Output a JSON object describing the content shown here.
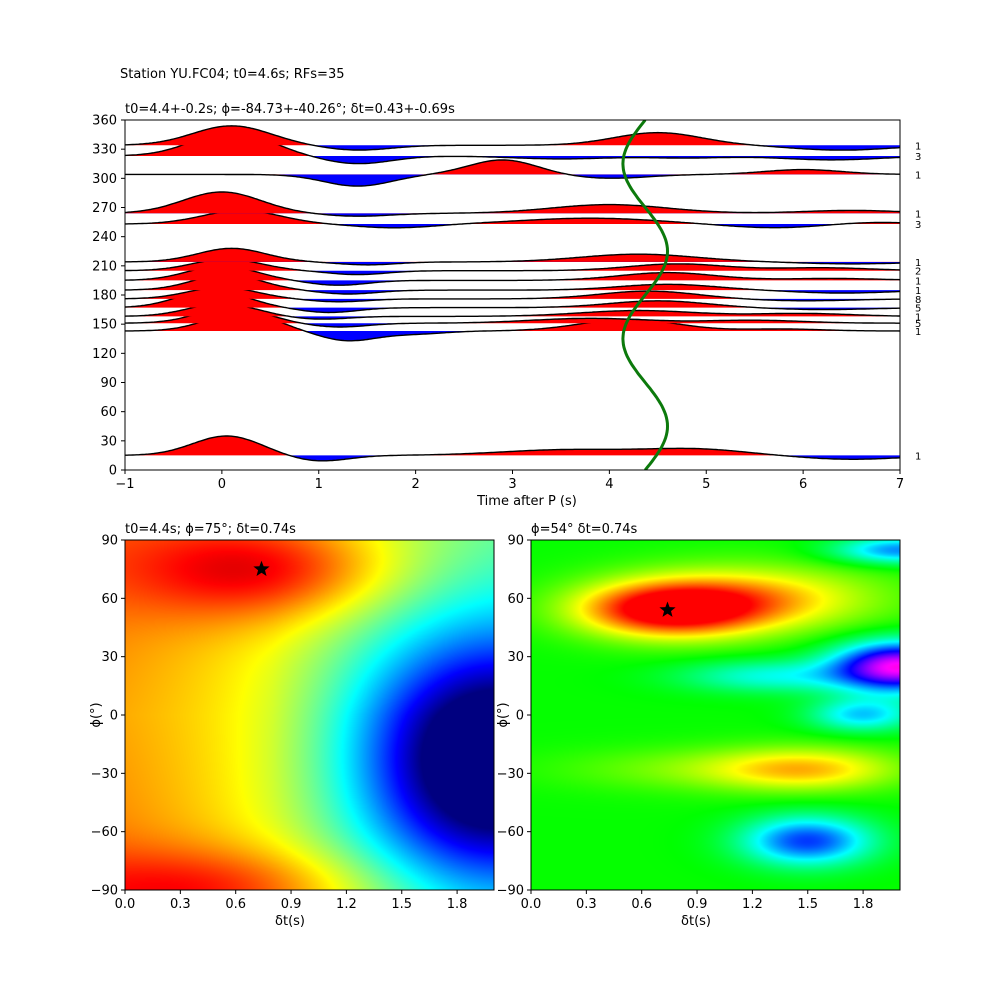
{
  "figure_title": "Station YU.FC04; t0=4.6s; RFs=35",
  "chart_data": [
    {
      "type": "line",
      "title": "t0=4.4+-0.2s; ϕ=-84.73+-40.26°; δt=0.43+-0.69s",
      "xlabel": "Time after P (s)",
      "ylabel": "",
      "xlim": [
        -1,
        7
      ],
      "ylim": [
        0,
        360
      ],
      "x_ticks": [
        "−1",
        "0",
        "1",
        "2",
        "3",
        "4",
        "5",
        "6",
        "7"
      ],
      "y_ticks": [
        "0",
        "30",
        "60",
        "90",
        "120",
        "150",
        "180",
        "210",
        "240",
        "270",
        "300",
        "330",
        "360"
      ],
      "baz_counts": [
        {
          "baz": 15,
          "count": "1"
        },
        {
          "baz": 143,
          "count": "1"
        },
        {
          "baz": 151,
          "count": "5"
        },
        {
          "baz": 158,
          "count": "1"
        },
        {
          "baz": 167,
          "count": "5"
        },
        {
          "baz": 176,
          "count": "8"
        },
        {
          "baz": 185,
          "count": "1"
        },
        {
          "baz": 195,
          "count": "1"
        },
        {
          "baz": 205,
          "count": "2"
        },
        {
          "baz": 214,
          "count": "1"
        },
        {
          "baz": 253,
          "count": "3"
        },
        {
          "baz": 264,
          "count": "1"
        },
        {
          "baz": 323,
          "count": "3"
        },
        {
          "baz": 334,
          "count": "1"
        },
        {
          "baz": 304,
          "count": "1"
        }
      ],
      "traces": [
        {
          "baz": 15,
          "peaks": [
            [
              0.05,
              2.0,
              0.35
            ],
            [
              1.0,
              -0.6,
              0.3
            ],
            [
              3.6,
              0.6,
              0.7
            ],
            [
              4.9,
              0.6,
              0.5
            ],
            [
              6.5,
              -0.4,
              0.5
            ]
          ]
        },
        {
          "baz": 143,
          "peaks": [
            [
              0.2,
              1.9,
              0.35
            ],
            [
              1.3,
              -1.0,
              0.3
            ],
            [
              2.0,
              -0.3,
              0.3
            ],
            [
              4.2,
              1.2,
              0.5
            ],
            [
              5.8,
              0.2,
              0.4
            ]
          ]
        },
        {
          "baz": 151,
          "peaks": [
            [
              0.1,
              1.6,
              0.35
            ],
            [
              1.2,
              -0.4,
              0.3
            ],
            [
              3.8,
              0.5,
              0.6
            ],
            [
              5.5,
              0.3,
              0.5
            ]
          ]
        },
        {
          "baz": 158,
          "peaks": [
            [
              0.0,
              1.3,
              0.35
            ],
            [
              1.0,
              -0.3,
              0.3
            ],
            [
              4.3,
              0.6,
              0.6
            ],
            [
              6.0,
              0.3,
              0.5
            ]
          ]
        },
        {
          "baz": 167,
          "peaks": [
            [
              -0.1,
              1.8,
              0.35
            ],
            [
              1.1,
              -0.5,
              0.3
            ],
            [
              4.5,
              0.7,
              0.5
            ],
            [
              6.2,
              -0.2,
              0.5
            ]
          ]
        },
        {
          "baz": 176,
          "peaks": [
            [
              0.0,
              1.2,
              0.35
            ],
            [
              1.2,
              -0.3,
              0.3
            ],
            [
              4.4,
              0.8,
              0.5
            ],
            [
              6.0,
              -0.2,
              0.5
            ]
          ]
        },
        {
          "baz": 185,
          "peaks": [
            [
              0.05,
              1.6,
              0.35
            ],
            [
              1.3,
              -0.4,
              0.3
            ],
            [
              4.6,
              0.6,
              0.5
            ],
            [
              6.4,
              -0.3,
              0.5
            ]
          ]
        },
        {
          "baz": 195,
          "peaks": [
            [
              0.0,
              1.5,
              0.35
            ],
            [
              1.2,
              -0.5,
              0.3
            ],
            [
              4.6,
              0.8,
              0.5
            ],
            [
              6.3,
              0.2,
              0.5
            ]
          ]
        },
        {
          "baz": 205,
          "peaks": [
            [
              0.05,
              1.2,
              0.35
            ],
            [
              1.4,
              -0.4,
              0.3
            ],
            [
              4.7,
              0.7,
              0.5
            ],
            [
              6.2,
              0.3,
              0.5
            ]
          ]
        },
        {
          "baz": 214,
          "peaks": [
            [
              0.1,
              1.4,
              0.35
            ],
            [
              1.5,
              -0.3,
              0.3
            ],
            [
              4.3,
              0.8,
              0.6
            ],
            [
              6.5,
              -0.2,
              0.5
            ]
          ]
        },
        {
          "baz": 253,
          "peaks": [
            [
              0.2,
              1.4,
              0.4
            ],
            [
              1.8,
              -0.4,
              0.4
            ],
            [
              3.8,
              0.6,
              0.7
            ],
            [
              5.7,
              -0.4,
              0.5
            ],
            [
              6.7,
              0.2,
              0.4
            ]
          ]
        },
        {
          "baz": 264,
          "peaks": [
            [
              0.0,
              2.2,
              0.4
            ],
            [
              1.4,
              -0.3,
              0.35
            ],
            [
              4.0,
              0.9,
              0.6
            ],
            [
              6.5,
              0.3,
              0.5
            ]
          ]
        },
        {
          "baz": 304,
          "peaks": [
            [
              1.4,
              -1.2,
              0.35
            ],
            [
              2.9,
              1.5,
              0.35
            ],
            [
              4.0,
              -0.4,
              0.4
            ],
            [
              6.0,
              0.5,
              0.4
            ]
          ]
        },
        {
          "baz": 323,
          "peaks": [
            [
              0.1,
              2.5,
              0.4
            ],
            [
              1.4,
              -0.8,
              0.35
            ],
            [
              3.5,
              -0.3,
              0.5
            ],
            [
              4.8,
              -0.2,
              0.4
            ],
            [
              6.3,
              -0.4,
              0.5
            ]
          ]
        },
        {
          "baz": 334,
          "peaks": [
            [
              0.1,
              2.0,
              0.4
            ],
            [
              1.4,
              -0.5,
              0.35
            ],
            [
              4.5,
              1.3,
              0.45
            ],
            [
              6.4,
              -0.5,
              0.5
            ]
          ]
        }
      ],
      "t0_curve": {
        "mean": 4.37,
        "amp": 0.23,
        "phase_deg": 45
      },
      "colors": {
        "positive": "#ff0000",
        "negative": "#0000ff",
        "line": "#000000",
        "curve": "#0c7a0c"
      }
    },
    {
      "type": "heatmap",
      "title": "t0=4.4s; ϕ=75°; δt=0.74s",
      "xlabel": "δt(s)",
      "ylabel": "ϕ(°)",
      "xlim": [
        0,
        2
      ],
      "ylim": [
        -90,
        90
      ],
      "x_ticks": [
        "0.0",
        "0.3",
        "0.6",
        "0.9",
        "1.2",
        "1.5",
        "1.8"
      ],
      "y_ticks": [
        "−90",
        "−60",
        "−30",
        "0",
        "30",
        "60",
        "90"
      ],
      "colormap": "jet",
      "best": {
        "dt": 0.74,
        "phi": 75
      }
    },
    {
      "type": "heatmap",
      "title": "ϕ=54° δt=0.74s",
      "xlabel": "δt(s)",
      "ylabel": "ϕ(°)",
      "xlim": [
        0,
        2
      ],
      "ylim": [
        -90,
        90
      ],
      "x_ticks": [
        "0.0",
        "0.3",
        "0.6",
        "0.9",
        "1.2",
        "1.5",
        "1.8"
      ],
      "y_ticks": [
        "−90",
        "−60",
        "−30",
        "0",
        "30",
        "60",
        "90"
      ],
      "colormap": "hsv",
      "best": {
        "dt": 0.74,
        "phi": 54
      }
    }
  ]
}
